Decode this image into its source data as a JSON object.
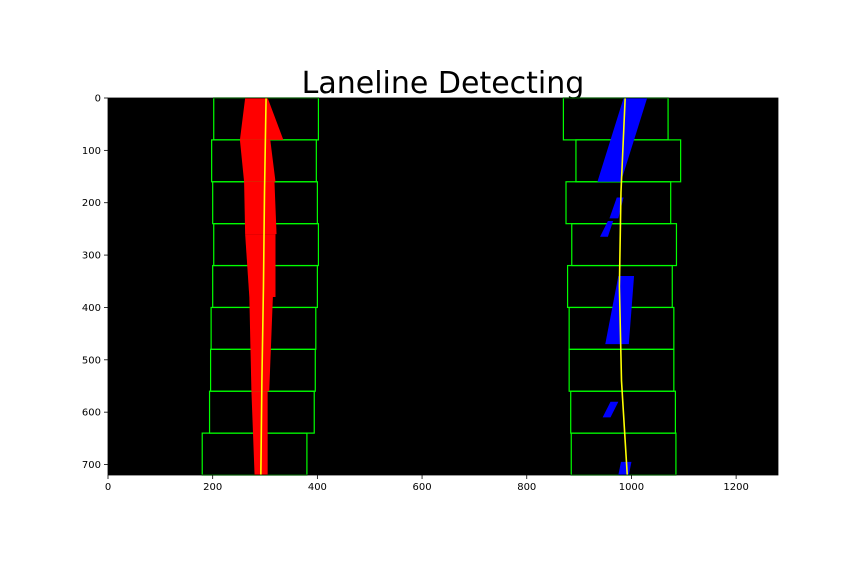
{
  "chart_data": {
    "type": "scatter",
    "title": "Laneline Detecting",
    "xlabel": "",
    "ylabel": "",
    "xlim": [
      0,
      1280
    ],
    "ylim": [
      720,
      0
    ],
    "x_ticks": [
      0,
      200,
      400,
      600,
      800,
      1000,
      1200
    ],
    "y_ticks": [
      0,
      100,
      200,
      300,
      400,
      500,
      600,
      700
    ],
    "grid": false,
    "background_color": "#000000",
    "left_lane": {
      "pixel_color": "#ff0000",
      "fit_color": "#ffff00",
      "fit_points": [
        [
          302,
          0
        ],
        [
          299,
          180
        ],
        [
          297,
          360
        ],
        [
          294,
          540
        ],
        [
          292,
          720
        ]
      ],
      "pixel_segments": [
        {
          "y": [
            0,
            80
          ],
          "x_left": [
            262,
            252
          ],
          "x_right": [
            305,
            335
          ]
        },
        {
          "y": [
            80,
            160
          ],
          "x_left": [
            252,
            260
          ],
          "x_right": [
            310,
            320
          ]
        },
        {
          "y": [
            160,
            260
          ],
          "x_left": [
            260,
            262
          ],
          "x_right": [
            318,
            322
          ]
        },
        {
          "y": [
            260,
            380
          ],
          "x_left": [
            262,
            270
          ],
          "x_right": [
            320,
            320
          ]
        },
        {
          "y": [
            380,
            560
          ],
          "x_left": [
            270,
            274
          ],
          "x_right": [
            315,
            308
          ]
        },
        {
          "y": [
            560,
            720
          ],
          "x_left": [
            274,
            280
          ],
          "x_right": [
            305,
            305
          ]
        }
      ]
    },
    "right_lane": {
      "pixel_color": "#0000ff",
      "fit_color": "#ffff00",
      "fit_points": [
        [
          988,
          0
        ],
        [
          980,
          180
        ],
        [
          977,
          360
        ],
        [
          981,
          540
        ],
        [
          992,
          720
        ]
      ],
      "blobs": [
        {
          "y": [
            0,
            160
          ],
          "x_left": [
            985,
            935
          ],
          "x_right": [
            1030,
            980
          ]
        },
        {
          "y": [
            190,
            230
          ],
          "x_left": [
            972,
            958
          ],
          "x_right": [
            985,
            975
          ]
        },
        {
          "y": [
            235,
            265
          ],
          "x_left": [
            955,
            940
          ],
          "x_right": [
            965,
            955
          ]
        },
        {
          "y": [
            340,
            470
          ],
          "x_left": [
            975,
            950
          ],
          "x_right": [
            1005,
            995
          ]
        },
        {
          "y": [
            580,
            610
          ],
          "x_left": [
            960,
            945
          ],
          "x_right": [
            975,
            960
          ]
        },
        {
          "y": [
            695,
            720
          ],
          "x_left": [
            980,
            975
          ],
          "x_right": [
            1000,
            995
          ]
        }
      ]
    },
    "search_windows": {
      "color": "#00ff00",
      "left": [
        {
          "x": [
            202,
            402
          ],
          "y": [
            0,
            80
          ]
        },
        {
          "x": [
            198,
            398
          ],
          "y": [
            80,
            160
          ]
        },
        {
          "x": [
            200,
            400
          ],
          "y": [
            160,
            240
          ]
        },
        {
          "x": [
            202,
            402
          ],
          "y": [
            240,
            320
          ]
        },
        {
          "x": [
            200,
            400
          ],
          "y": [
            320,
            400
          ]
        },
        {
          "x": [
            197,
            397
          ],
          "y": [
            400,
            480
          ]
        },
        {
          "x": [
            196,
            396
          ],
          "y": [
            480,
            560
          ]
        },
        {
          "x": [
            194,
            394
          ],
          "y": [
            560,
            640
          ]
        },
        {
          "x": [
            180,
            380
          ],
          "y": [
            640,
            720
          ]
        }
      ],
      "right": [
        {
          "x": [
            870,
            1070
          ],
          "y": [
            0,
            80
          ]
        },
        {
          "x": [
            894,
            1094
          ],
          "y": [
            80,
            160
          ]
        },
        {
          "x": [
            875,
            1075
          ],
          "y": [
            160,
            240
          ]
        },
        {
          "x": [
            886,
            1086
          ],
          "y": [
            240,
            320
          ]
        },
        {
          "x": [
            878,
            1078
          ],
          "y": [
            320,
            400
          ]
        },
        {
          "x": [
            881,
            1081
          ],
          "y": [
            400,
            480
          ]
        },
        {
          "x": [
            881,
            1081
          ],
          "y": [
            480,
            560
          ]
        },
        {
          "x": [
            884,
            1084
          ],
          "y": [
            560,
            640
          ]
        },
        {
          "x": [
            885,
            1085
          ],
          "y": [
            640,
            720
          ]
        }
      ]
    }
  }
}
